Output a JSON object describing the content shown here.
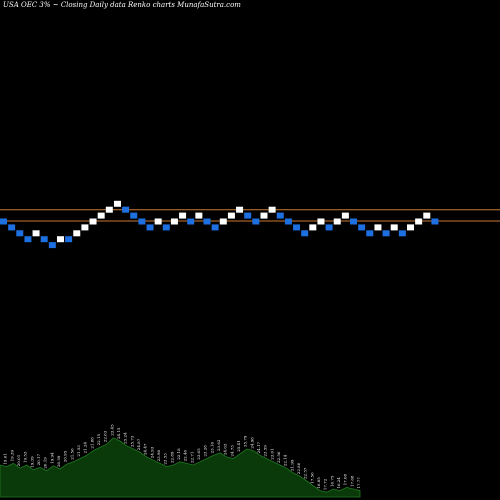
{
  "header": {
    "title": "USA OEC 3% ~  Closing Daily data  Renko  charts MunafaSutra.com"
  },
  "colors": {
    "background": "#000000",
    "up_brick": "#ffffff",
    "down_brick": "#1e6fe0",
    "reference_line": "#c87832",
    "volume_fill": "#0a3a0a",
    "volume_outline": "#1f7a1f"
  },
  "chart_data": {
    "type": "renko",
    "title": "USA OEC 3% ~  Closing Daily data  Renko  charts MunafaSutra.com",
    "reference_levels": [
      2,
      0
    ],
    "bricks": [
      {
        "dir": "down",
        "level": 0
      },
      {
        "dir": "down",
        "level": -1
      },
      {
        "dir": "down",
        "level": -2
      },
      {
        "dir": "down",
        "level": -3
      },
      {
        "dir": "up",
        "level": -2
      },
      {
        "dir": "down",
        "level": -3
      },
      {
        "dir": "down",
        "level": -4
      },
      {
        "dir": "up",
        "level": -3
      },
      {
        "dir": "down",
        "level": -3
      },
      {
        "dir": "up",
        "level": -2
      },
      {
        "dir": "up",
        "level": -1
      },
      {
        "dir": "up",
        "level": 0
      },
      {
        "dir": "up",
        "level": 1
      },
      {
        "dir": "up",
        "level": 2
      },
      {
        "dir": "up",
        "level": 3
      },
      {
        "dir": "down",
        "level": 2
      },
      {
        "dir": "down",
        "level": 1
      },
      {
        "dir": "down",
        "level": 0
      },
      {
        "dir": "down",
        "level": -1
      },
      {
        "dir": "up",
        "level": 0
      },
      {
        "dir": "down",
        "level": -1
      },
      {
        "dir": "up",
        "level": 0
      },
      {
        "dir": "up",
        "level": 1
      },
      {
        "dir": "down",
        "level": 0
      },
      {
        "dir": "up",
        "level": 1
      },
      {
        "dir": "down",
        "level": 0
      },
      {
        "dir": "down",
        "level": -1
      },
      {
        "dir": "up",
        "level": 0
      },
      {
        "dir": "up",
        "level": 1
      },
      {
        "dir": "up",
        "level": 2
      },
      {
        "dir": "down",
        "level": 1
      },
      {
        "dir": "down",
        "level": 0
      },
      {
        "dir": "up",
        "level": 1
      },
      {
        "dir": "up",
        "level": 2
      },
      {
        "dir": "down",
        "level": 1
      },
      {
        "dir": "down",
        "level": 0
      },
      {
        "dir": "down",
        "level": -1
      },
      {
        "dir": "down",
        "level": -2
      },
      {
        "dir": "up",
        "level": -1
      },
      {
        "dir": "up",
        "level": 0
      },
      {
        "dir": "down",
        "level": -1
      },
      {
        "dir": "up",
        "level": 0
      },
      {
        "dir": "up",
        "level": 1
      },
      {
        "dir": "down",
        "level": 0
      },
      {
        "dir": "down",
        "level": -1
      },
      {
        "dir": "down",
        "level": -2
      },
      {
        "dir": "up",
        "level": -1
      },
      {
        "dir": "down",
        "level": -2
      },
      {
        "dir": "up",
        "level": -1
      },
      {
        "dir": "down",
        "level": -2
      },
      {
        "dir": "up",
        "level": -1
      },
      {
        "dir": "up",
        "level": 0
      },
      {
        "dir": "up",
        "level": 1
      },
      {
        "dir": "down",
        "level": 0
      }
    ],
    "volume_area": [
      0.4,
      0.38,
      0.42,
      0.36,
      0.4,
      0.34,
      0.37,
      0.33,
      0.39,
      0.35,
      0.41,
      0.44,
      0.48,
      0.52,
      0.58,
      0.62,
      0.66,
      0.74,
      0.7,
      0.64,
      0.6,
      0.56,
      0.5,
      0.46,
      0.42,
      0.38,
      0.4,
      0.44,
      0.42,
      0.4,
      0.44,
      0.48,
      0.52,
      0.55,
      0.5,
      0.48,
      0.54,
      0.6,
      0.58,
      0.52,
      0.48,
      0.44,
      0.4,
      0.36,
      0.3,
      0.26,
      0.2,
      0.14,
      0.08,
      0.06,
      0.1,
      0.08,
      0.12,
      0.1,
      0.08
    ],
    "volume_labels": [
      "19.25",
      "19.61",
      "19.39",
      "20.01",
      "19.53",
      "19.39",
      "20.17",
      "20.19",
      "19.94",
      "20.59",
      "20.95",
      "21.56",
      "21.53",
      "21.24",
      "21.86",
      "22.15",
      "22.63",
      "23.45",
      "24.15",
      "25.24",
      "25.73",
      "24.87",
      "24.47",
      "24.93",
      "23.98",
      "23.53",
      "22.89",
      "22.18",
      "22.46",
      "22.71",
      "23.65",
      "23.28",
      "23.16",
      "23.62",
      "24.03",
      "24.73",
      "25.41",
      "25.79",
      "24.96",
      "24.17",
      "23.59",
      "23.01",
      "22.56",
      "22.14",
      "21.99",
      "22.80",
      "22.57",
      "17.56",
      "16.85",
      "17.72",
      "16.75",
      "16.24",
      "17.08",
      "17.68",
      "17.77"
    ]
  }
}
